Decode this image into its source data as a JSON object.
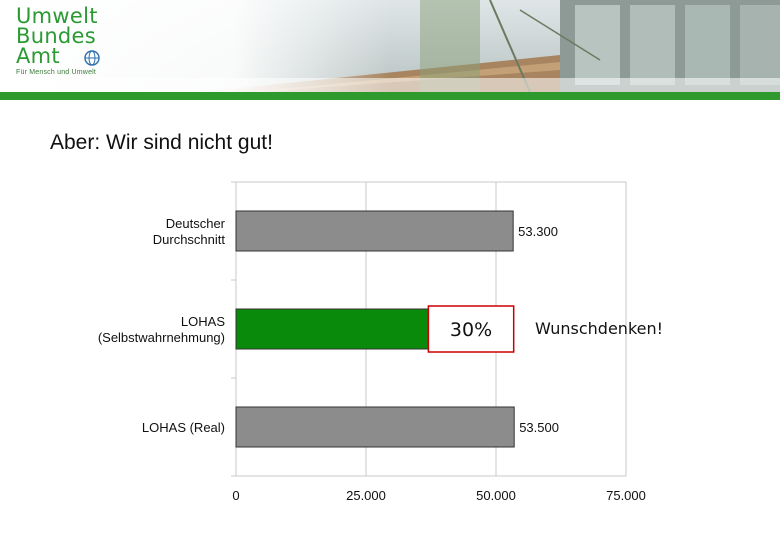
{
  "slide": {
    "title": "Aber: Wir sind nicht gut!",
    "annotation": "Wunschdenken!"
  },
  "logo": {
    "line1": "Umwelt",
    "line2": "Bundes",
    "line3": "Amt",
    "tagline": "Für Mensch und Umwelt",
    "color": "#2b9a32"
  },
  "colors": {
    "gray_bar": "#8c8c8c",
    "green_bar": "#0a8a0a",
    "highlight_border": "#cc0000",
    "accent_green": "#2e9a2e"
  },
  "chart_data": {
    "type": "bar",
    "orientation": "horizontal",
    "categories": [
      [
        "Deutscher",
        "Durchschnitt"
      ],
      [
        "LOHAS",
        "(Selbstwahrnehmung)"
      ],
      [
        "LOHAS (Real)"
      ]
    ],
    "values": [
      53300,
      37000,
      53500
    ],
    "value_labels": [
      "53.300",
      "",
      "53.500"
    ],
    "bar_colors": [
      "#8c8c8c",
      "#0a8a0a",
      "#8c8c8c"
    ],
    "highlight": {
      "index": 1,
      "label": "30%"
    },
    "xlim": [
      0,
      75000
    ],
    "xticks": [
      0,
      25000,
      50000,
      75000
    ],
    "xtick_labels": [
      "0",
      "25.000",
      "50.000",
      "75.000"
    ],
    "grid": true,
    "title": "",
    "xlabel": "",
    "ylabel": ""
  }
}
